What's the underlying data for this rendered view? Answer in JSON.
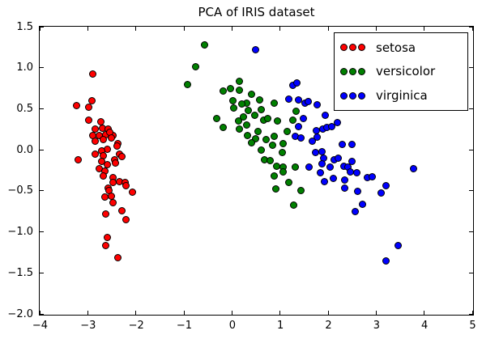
{
  "chart_data": {
    "type": "scatter",
    "title": "PCA of IRIS dataset",
    "xlabel": "",
    "ylabel": "",
    "xlim": [
      -4,
      5
    ],
    "ylim": [
      -2.0,
      1.5
    ],
    "grid": false,
    "tick_direction": "in",
    "legend": {
      "position": "upper right",
      "marker_count": 3
    },
    "x_ticks": [
      -4,
      -3,
      -2,
      -1,
      0,
      1,
      2,
      3,
      4,
      5
    ],
    "x_tick_labels": [
      "−4",
      "−3",
      "−2",
      "−1",
      "0",
      "1",
      "2",
      "3",
      "4",
      "5"
    ],
    "y_ticks": [
      1.5,
      1.0,
      0.5,
      0.0,
      -0.5,
      -1.0,
      -1.5,
      -2.0
    ],
    "y_tick_labels": [
      "1.5",
      "1.0",
      "0.5",
      "0.0",
      "−0.5",
      "−1.0",
      "−1.5",
      "−2.0"
    ],
    "series": [
      {
        "name": "setosa",
        "color": "#ff0000",
        "points": [
          [
            -2.88,
            0.92
          ],
          [
            -3.22,
            0.53
          ],
          [
            -2.97,
            0.51
          ],
          [
            -2.91,
            0.59
          ],
          [
            -2.97,
            0.36
          ],
          [
            -2.72,
            0.34
          ],
          [
            -2.83,
            0.25
          ],
          [
            -2.69,
            0.26
          ],
          [
            -2.56,
            0.25
          ],
          [
            -2.89,
            0.17
          ],
          [
            -2.75,
            0.17
          ],
          [
            -2.61,
            0.18
          ],
          [
            -2.47,
            0.17
          ],
          [
            -2.53,
            0.21
          ],
          [
            -2.83,
            0.1
          ],
          [
            -2.67,
            0.12
          ],
          [
            -2.5,
            0.14
          ],
          [
            -2.36,
            0.07
          ],
          [
            -2.39,
            0.04
          ],
          [
            -2.58,
            0.0
          ],
          [
            -2.7,
            -0.02
          ],
          [
            -3.19,
            -0.13
          ],
          [
            -2.83,
            -0.06
          ],
          [
            -2.67,
            -0.08
          ],
          [
            -2.33,
            -0.06
          ],
          [
            -2.28,
            -0.09
          ],
          [
            -2.44,
            -0.13
          ],
          [
            -2.42,
            -0.17
          ],
          [
            -2.58,
            -0.19
          ],
          [
            -2.7,
            -0.15
          ],
          [
            -2.75,
            -0.24
          ],
          [
            -2.64,
            -0.26
          ],
          [
            -2.67,
            -0.32
          ],
          [
            -2.47,
            -0.34
          ],
          [
            -2.47,
            -0.4
          ],
          [
            -2.33,
            -0.39
          ],
          [
            -2.22,
            -0.4
          ],
          [
            -2.19,
            -0.44
          ],
          [
            -2.56,
            -0.47
          ],
          [
            -2.06,
            -0.52
          ],
          [
            -2.55,
            -0.5
          ],
          [
            -2.64,
            -0.58
          ],
          [
            -2.5,
            -0.57
          ],
          [
            -2.47,
            -0.65
          ],
          [
            -2.61,
            -0.79
          ],
          [
            -2.28,
            -0.75
          ],
          [
            -2.19,
            -0.86
          ],
          [
            -2.58,
            -1.07
          ],
          [
            -2.61,
            -1.17
          ],
          [
            -2.36,
            -1.32
          ]
        ]
      },
      {
        "name": "versicolor",
        "color": "#008000",
        "points": [
          [
            -0.56,
            1.27
          ],
          [
            -0.75,
            1.01
          ],
          [
            -0.92,
            0.79
          ],
          [
            -0.17,
            0.71
          ],
          [
            -0.03,
            0.74
          ],
          [
            0.17,
            0.83
          ],
          [
            0.17,
            0.72
          ],
          [
            0.42,
            0.67
          ],
          [
            0.03,
            0.59
          ],
          [
            0.31,
            0.56
          ],
          [
            0.05,
            0.5
          ],
          [
            0.22,
            0.55
          ],
          [
            0.58,
            0.6
          ],
          [
            0.61,
            0.48
          ],
          [
            0.67,
            0.36
          ],
          [
            0.48,
            0.42
          ],
          [
            0.35,
            0.47
          ],
          [
            -0.31,
            0.38
          ],
          [
            0.14,
            0.35
          ],
          [
            0.25,
            0.4
          ],
          [
            0.31,
            0.3
          ],
          [
            0.17,
            0.25
          ],
          [
            -0.17,
            0.27
          ],
          [
            0.55,
            0.22
          ],
          [
            0.89,
            0.56
          ],
          [
            0.95,
            0.35
          ],
          [
            0.75,
            0.38
          ],
          [
            1.28,
            0.36
          ],
          [
            1.34,
            0.46
          ],
          [
            1.15,
            0.22
          ],
          [
            0.33,
            0.17
          ],
          [
            0.5,
            0.13
          ],
          [
            0.42,
            0.08
          ],
          [
            0.61,
            -0.01
          ],
          [
            0.69,
            -0.13
          ],
          [
            0.72,
            0.12
          ],
          [
            0.89,
            0.16
          ],
          [
            0.86,
            0.05
          ],
          [
            1.08,
            0.07
          ],
          [
            1.06,
            -0.04
          ],
          [
            0.81,
            -0.14
          ],
          [
            0.94,
            -0.21
          ],
          [
            1.08,
            -0.22
          ],
          [
            1.33,
            -0.22
          ],
          [
            0.89,
            -0.32
          ],
          [
            1.08,
            -0.27
          ],
          [
            1.19,
            -0.4
          ],
          [
            0.92,
            -0.48
          ],
          [
            1.44,
            -0.5
          ],
          [
            1.3,
            -0.68
          ]
        ]
      },
      {
        "name": "virginica",
        "color": "#0000ff",
        "points": [
          [
            0.5,
            1.21
          ],
          [
            1.28,
            0.78
          ],
          [
            1.36,
            0.81
          ],
          [
            1.19,
            0.61
          ],
          [
            1.39,
            0.6
          ],
          [
            1.52,
            0.56
          ],
          [
            1.6,
            0.58
          ],
          [
            1.78,
            0.54
          ],
          [
            1.95,
            0.42
          ],
          [
            1.5,
            0.38
          ],
          [
            1.39,
            0.28
          ],
          [
            1.76,
            0.23
          ],
          [
            1.9,
            0.25
          ],
          [
            1.98,
            0.27
          ],
          [
            2.09,
            0.28
          ],
          [
            2.21,
            0.33
          ],
          [
            1.33,
            0.16
          ],
          [
            1.44,
            0.14
          ],
          [
            1.78,
            0.15
          ],
          [
            1.68,
            0.1
          ],
          [
            2.31,
            0.06
          ],
          [
            2.5,
            0.06
          ],
          [
            1.75,
            -0.04
          ],
          [
            1.89,
            -0.03
          ],
          [
            1.92,
            -0.11
          ],
          [
            1.89,
            -0.18
          ],
          [
            2.14,
            -0.13
          ],
          [
            2.22,
            -0.11
          ],
          [
            2.5,
            -0.15
          ],
          [
            1.61,
            -0.22
          ],
          [
            2.05,
            -0.22
          ],
          [
            1.85,
            -0.28
          ],
          [
            2.33,
            -0.21
          ],
          [
            2.42,
            -0.22
          ],
          [
            2.47,
            -0.27
          ],
          [
            2.61,
            -0.28
          ],
          [
            1.94,
            -0.39
          ],
          [
            2.11,
            -0.35
          ],
          [
            2.36,
            -0.37
          ],
          [
            2.36,
            -0.47
          ],
          [
            2.63,
            -0.51
          ],
          [
            2.83,
            -0.34
          ],
          [
            2.92,
            -0.33
          ],
          [
            3.78,
            -0.24
          ],
          [
            3.22,
            -0.44
          ],
          [
            3.11,
            -0.53
          ],
          [
            2.72,
            -0.67
          ],
          [
            2.58,
            -0.76
          ],
          [
            3.47,
            -1.17
          ],
          [
            3.22,
            -1.36
          ]
        ]
      }
    ]
  }
}
